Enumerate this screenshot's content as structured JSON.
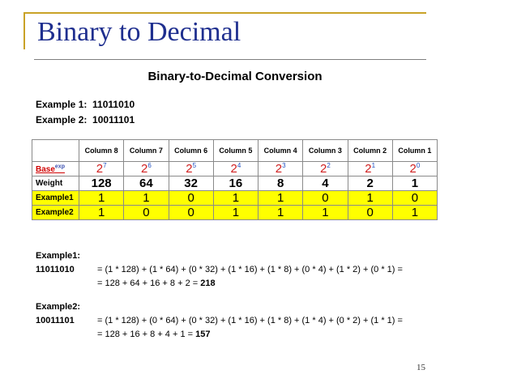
{
  "slide": {
    "title": "Binary to Decimal",
    "page_number": "15"
  },
  "subtitle": "Binary-to-Decimal Conversion",
  "examples": [
    {
      "label": "Example 1:",
      "value": "11011010"
    },
    {
      "label": "Example 2:",
      "value": "10011101"
    }
  ],
  "table": {
    "columns": [
      "Column 8",
      "Column 7",
      "Column 6",
      "Column 5",
      "Column 4",
      "Column 3",
      "Column 2",
      "Column 1"
    ],
    "base_label": "Base",
    "base_sup": "exp",
    "base_base": "2",
    "exponents": [
      "7",
      "6",
      "5",
      "4",
      "3",
      "2",
      "1",
      "0"
    ],
    "weight_label": "Weight",
    "weights": [
      "128",
      "64",
      "32",
      "16",
      "8",
      "4",
      "2",
      "1"
    ],
    "rows": [
      {
        "label": "Example1",
        "bits": [
          "1",
          "1",
          "0",
          "1",
          "1",
          "0",
          "1",
          "0"
        ]
      },
      {
        "label": "Example2",
        "bits": [
          "1",
          "0",
          "0",
          "1",
          "1",
          "1",
          "0",
          "1"
        ]
      }
    ]
  },
  "calc1": {
    "heading": "Example1:",
    "binary": "11011010",
    "line1": "= (1 * 128) + (1 * 64) + (0 * 32) + (1 * 16) + (1 * 8) + (0 * 4) + (1 * 2) + (0 * 1) =",
    "line2_prefix": "= 128 + 64 + 16 + 8 + 2 = ",
    "result": "218"
  },
  "calc2": {
    "heading": "Example2:",
    "binary": "10011101",
    "line1": "= (1 * 128) + (0 * 64) + (0 * 32) + (1 * 16) + (1 * 8) + (1 * 4) + (0 * 2) + (1 * 1) =",
    "line2_prefix": "= 128 + 16 + 8 + 4 + 1 = ",
    "result": "157"
  }
}
